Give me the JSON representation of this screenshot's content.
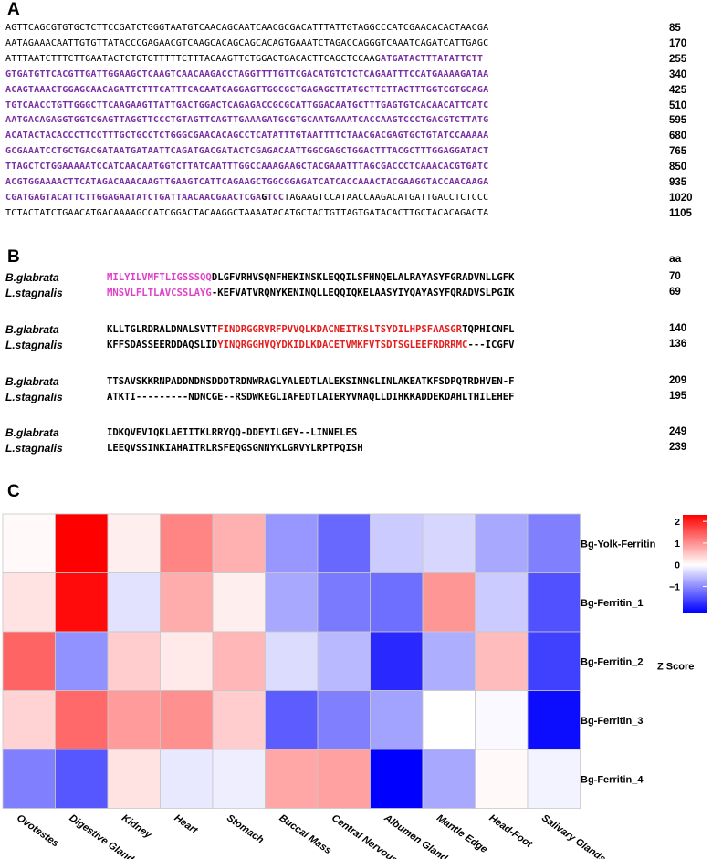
{
  "panels": {
    "a": "A",
    "b": "B",
    "c": "C"
  },
  "panelA": {
    "lines": [
      {
        "segments": [
          {
            "t": "AGTTCAGCGTGTGCTCTTCCGATCTGGGTAATGTCAACAGCAATCAACGCGACATTTATTGTAGGCCCATCGAACACACTAACGA",
            "s": "n"
          }
        ],
        "num": "85"
      },
      {
        "segments": [
          {
            "t": "AATAGAAACAATTGTGTTATACCCGAGAACGTCAAGCACAGCAGCACAGTGAAATCTAGACCAGGGTCAAATCAGATCATTGAGC",
            "s": "n"
          }
        ],
        "num": "170"
      },
      {
        "segments": [
          {
            "t": "ATTTAATCTTTCTTGAATACTCTGTGTTTTTCTTTACAAGTTCTGGACTGACACTTCAGCTCCAAG",
            "s": "n"
          },
          {
            "t": "ATGATACTTTATATTCTT",
            "s": "p"
          }
        ],
        "num": "255"
      },
      {
        "segments": [
          {
            "t": "GTGATGTTCACGTTGATTGGAAGCTCAAGTCAACAAGACCTAGGTTTTGTTCGACATGTCTCTCAGAATTTCCATGAAAAGATAA",
            "s": "p"
          }
        ],
        "num": "340"
      },
      {
        "segments": [
          {
            "t": "ACAGTAAACTGGAGCAACAGATTCTTTCATTTCACAATCAGGAGTTGGCGCTGAGAGCTTATGCTTCTTACTTTGGTCGTGCAGA",
            "s": "p"
          }
        ],
        "num": "425"
      },
      {
        "segments": [
          {
            "t": "TGTCAACCTGTTGGGCTTCAAGAAGTTATTGACTGGACTCAGAGACCGCGCATTGGACAATGCTTTGAGTGTCACAACATTCATC",
            "s": "p"
          }
        ],
        "num": "510"
      },
      {
        "segments": [
          {
            "t": "AATGACAGAGGTGGTCGAGTTAGGTTCCCTGTAGTTCAGTTGAAAGATGCGTGCAATGAAATCACCAAGTCCCTGACGTCTTATG",
            "s": "p"
          }
        ],
        "num": "595"
      },
      {
        "segments": [
          {
            "t": "ACATACTACACCCTTCCTTTGCTGCCTCTGGGCGAACACAGCCTCATATTTGTAATTTTCTAACGACGAGTGCTGTATCCAAAAA",
            "s": "p"
          }
        ],
        "num": "680"
      },
      {
        "segments": [
          {
            "t": "GCGAAATCCTGCTGACGATAATGATAATTCAGATGACGATACTCGAGACAATTGGCGAGCTGGACTTTACGCTTTGGAGGATACT",
            "s": "p"
          }
        ],
        "num": "765"
      },
      {
        "segments": [
          {
            "t": "TTAGCTCTGGAAAAATCCATCAACAATGGTCTTATCAATTTGGCCAAAGAAGCTACGAAATTTAGCGACCCTCAAACACGTGATC",
            "s": "p"
          }
        ],
        "num": "850"
      },
      {
        "segments": [
          {
            "t": "ACGTGGAAAACTTCATAGACAAACAAGTTGAAGTCATTCAGAAGCTGGCGGAGATCATCACCAAACTACGAAGGTACCAACAAGA",
            "s": "p"
          }
        ],
        "num": "935"
      },
      {
        "segments": [
          {
            "t": "CGATGAGTACATTCTTGGAGAATATCTGATTAACAACGAACTCGA",
            "s": "p"
          },
          {
            "t": "G",
            "s": "k"
          },
          {
            "t": "TCC",
            "s": "p"
          },
          {
            "t": "TAGAAGTCCATAACCAAGACATGATTGACCTCTCCC",
            "s": "n"
          }
        ],
        "num": "1020"
      },
      {
        "segments": [
          {
            "t": "TCTACTATCTGAACATGACAAAAGCCATCGGACTACAAGGCTAAAATACATGCTACTGTTAGTGATACACTTGCTACACAGACTA",
            "s": "n"
          }
        ],
        "num": "1105"
      }
    ]
  },
  "panelB": {
    "unit": "aa",
    "blocks": [
      {
        "rows": [
          {
            "name": "B.glabrata",
            "segments": [
              {
                "t": "MILYILVMFTLIGSSSQQ",
                "s": "m"
              },
              {
                "t": "DLGFVRHVSQNFHEKINSKLEQQILSFHNQELALRAYASYFGRADVNLLGFK",
                "s": "k"
              }
            ],
            "num": "70"
          },
          {
            "name": "L.stagnalis",
            "segments": [
              {
                "t": "MNSVLFLTLAVCSSLAYG",
                "s": "m"
              },
              {
                "t": "-KEFVATVRQNYKENINQLLEQQIQKELAASYIYQAYASYFQRADVSLPGIK",
                "s": "k"
              }
            ],
            "num": "69"
          }
        ]
      },
      {
        "rows": [
          {
            "name": "B.glabrata",
            "segments": [
              {
                "t": "KLLTGLRDRALDNALSVTT",
                "s": "k"
              },
              {
                "t": "FINDRGGRVRFPVVQLKDACNEITKSLTSYDILHPSFAASGR",
                "s": "r"
              },
              {
                "t": "TQPHICNFL",
                "s": "k"
              }
            ],
            "num": "140"
          },
          {
            "name": "L.stagnalis",
            "segments": [
              {
                "t": "KFFSDASSEERDDAQSLID",
                "s": "k"
              },
              {
                "t": "YINQRGGHVQYDKIDLKDACETVMKFVTSDTSGLEEFRDRRMC",
                "s": "r"
              },
              {
                "t": "---ICGFV",
                "s": "k"
              }
            ],
            "num": "136"
          }
        ]
      },
      {
        "rows": [
          {
            "name": "B.glabrata",
            "segments": [
              {
                "t": "TTSAVSKKRNPADDNDNSDDDTRDNWRAGLYALEDTLALEKSINNGLINLAKEATKFSDPQTRDHVEN-F",
                "s": "k"
              }
            ],
            "num": "209"
          },
          {
            "name": "L.stagnalis",
            "segments": [
              {
                "t": "ATKTI---------NDNCGE--RSDWKEGLIAFEDTLAIERYVNAQLLDIHKKADDEKDAHLTHILEHEF",
                "s": "k"
              }
            ],
            "num": "195"
          }
        ]
      },
      {
        "rows": [
          {
            "name": "B.glabrata",
            "segments": [
              {
                "t": "IDKQVEVIQKLAEIITKLRRYQQ-DDEYILGEY--LINNELES",
                "s": "k"
              }
            ],
            "num": "249"
          },
          {
            "name": "L.stagnalis",
            "segments": [
              {
                "t": "LEEQVSSINKIAHAITRLRSFEQGSGNNYKLGRVYLRPTPQISH",
                "s": "k"
              }
            ],
            "num": "239"
          }
        ]
      }
    ]
  },
  "chart_data": {
    "type": "heatmap",
    "columns": [
      "Ovotestes",
      "Digestive Gland",
      "Kidney",
      "Heart",
      "Stomach",
      "Buccal Mass",
      "Central Nervous System",
      "Albumen Gland",
      "Mantle Edge",
      "Head-Foot",
      "Salivary Glands"
    ],
    "rows": [
      "Bg-Yolk-Ferritin",
      "Bg-Ferritin_1",
      "Bg-Ferritin_2",
      "Bg-Ferritin_3",
      "Bg-Ferritin_4"
    ],
    "values": [
      [
        0.05,
        2.3,
        0.15,
        1.1,
        0.7,
        -0.9,
        -1.3,
        -0.45,
        -0.35,
        -0.75,
        -1.1
      ],
      [
        0.25,
        2.2,
        -0.25,
        0.75,
        0.15,
        -0.75,
        -1.15,
        -1.25,
        0.95,
        -0.45,
        -1.5
      ],
      [
        1.4,
        -0.95,
        0.45,
        0.2,
        0.65,
        -0.3,
        -0.6,
        -1.85,
        -0.7,
        0.6,
        -1.65
      ],
      [
        0.4,
        1.35,
        0.9,
        1.0,
        0.45,
        -1.4,
        -1.1,
        -0.8,
        0.0,
        -0.05,
        -2.1
      ],
      [
        -1.1,
        -1.45,
        0.25,
        -0.2,
        -0.15,
        0.8,
        0.85,
        -2.2,
        -0.75,
        0.05,
        -0.1
      ]
    ],
    "colorbar": {
      "label": "Z Score",
      "ticks": [
        2,
        1,
        0,
        -1
      ],
      "range": [
        -2.2,
        2.3
      ],
      "colors": {
        "low": "#0000ff",
        "mid": "#ffffff",
        "high": "#ff0000"
      }
    }
  }
}
